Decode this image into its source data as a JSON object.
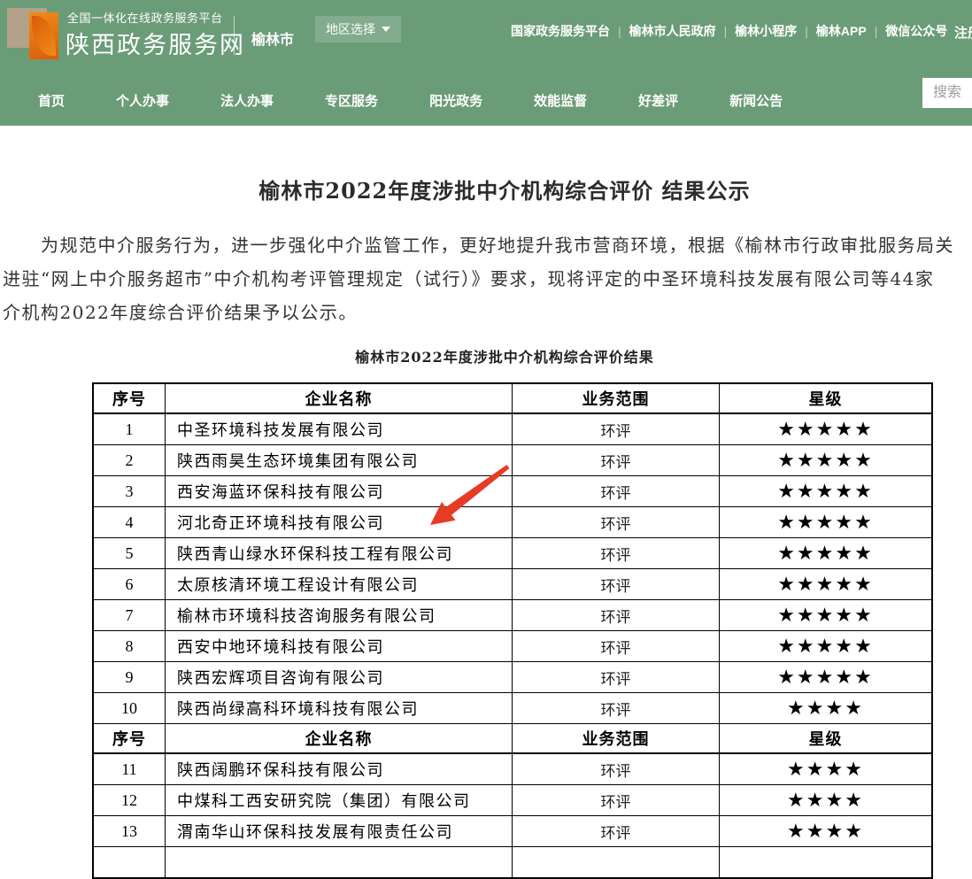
{
  "theme": {
    "header_green": "#6b9c78",
    "logo_orange_light": "#f08c17",
    "logo_orange_dark": "#d95c0c",
    "logo_tan": "#b3a18a",
    "arrow_red": "#e63c25"
  },
  "header": {
    "platform_name": "全国一体化在线政务服务平台",
    "site_name": "陕西政务服务网",
    "city": "榆林市",
    "region_selector_label": "地区选择",
    "quick_links": [
      "国家政务服务平台",
      "榆林市人民政府",
      "榆林小程序",
      "榆林APP",
      "微信公众号"
    ],
    "register_label": "注册"
  },
  "nav": {
    "items": [
      "首页",
      "个人办事",
      "法人办事",
      "专区服务",
      "阳光政务",
      "效能监督",
      "好差评",
      "新闻公告"
    ],
    "search_placeholder": "搜索"
  },
  "article": {
    "title": "榆林市2022年度涉批中介机构综合评价 结果公示",
    "paragraph_lines": [
      "为规范中介服务行为，进一步强化中介监管工作，更好地提升我市营商环境，根据《榆林市行政审批服务局关",
      "进驻“网上中介服务超市”中介机构考评管理规定（试行）》要求，现将评定的中圣环境科技发展有限公司等44家",
      "介机构2022年度综合评价结果予以公示。"
    ],
    "table_caption": "榆林市2022年度涉批中介机构综合评价结果"
  },
  "table": {
    "headers": [
      "序号",
      "企业名称",
      "业务范围",
      "星级"
    ],
    "sections": [
      {
        "rows": [
          {
            "no": "1",
            "company": "中圣环境科技发展有限公司",
            "scope": "环评",
            "stars": 5
          },
          {
            "no": "2",
            "company": "陕西雨昊生态环境集团有限公司",
            "scope": "环评",
            "stars": 5
          },
          {
            "no": "3",
            "company": "西安海蓝环保科技有限公司",
            "scope": "环评",
            "stars": 5
          },
          {
            "no": "4",
            "company": "河北奇正环境科技有限公司",
            "scope": "环评",
            "stars": 5
          },
          {
            "no": "5",
            "company": "陕西青山绿水环保科技工程有限公司",
            "scope": "环评",
            "stars": 5
          },
          {
            "no": "6",
            "company": "太原核清环境工程设计有限公司",
            "scope": "环评",
            "stars": 5
          },
          {
            "no": "7",
            "company": "榆林市环境科技咨询服务有限公司",
            "scope": "环评",
            "stars": 5
          },
          {
            "no": "8",
            "company": "西安中地环境科技有限公司",
            "scope": "环评",
            "stars": 5
          },
          {
            "no": "9",
            "company": "陕西宏辉项目咨询有限公司",
            "scope": "环评",
            "stars": 5
          },
          {
            "no": "10",
            "company": "陕西尚绿高科环境科技有限公司",
            "scope": "环评",
            "stars": 4
          }
        ]
      },
      {
        "rows": [
          {
            "no": "11",
            "company": "陕西阔鹏环保科技有限公司",
            "scope": "环评",
            "stars": 4
          },
          {
            "no": "12",
            "company": "中煤科工西安研究院（集团）有限公司",
            "scope": "环评",
            "stars": 4
          },
          {
            "no": "13",
            "company": "渭南华山环保科技发展有限责任公司",
            "scope": "环评",
            "stars": 4
          }
        ]
      }
    ],
    "star_glyph": "★"
  },
  "annotation": {
    "arrow_color": "#e63c25"
  }
}
